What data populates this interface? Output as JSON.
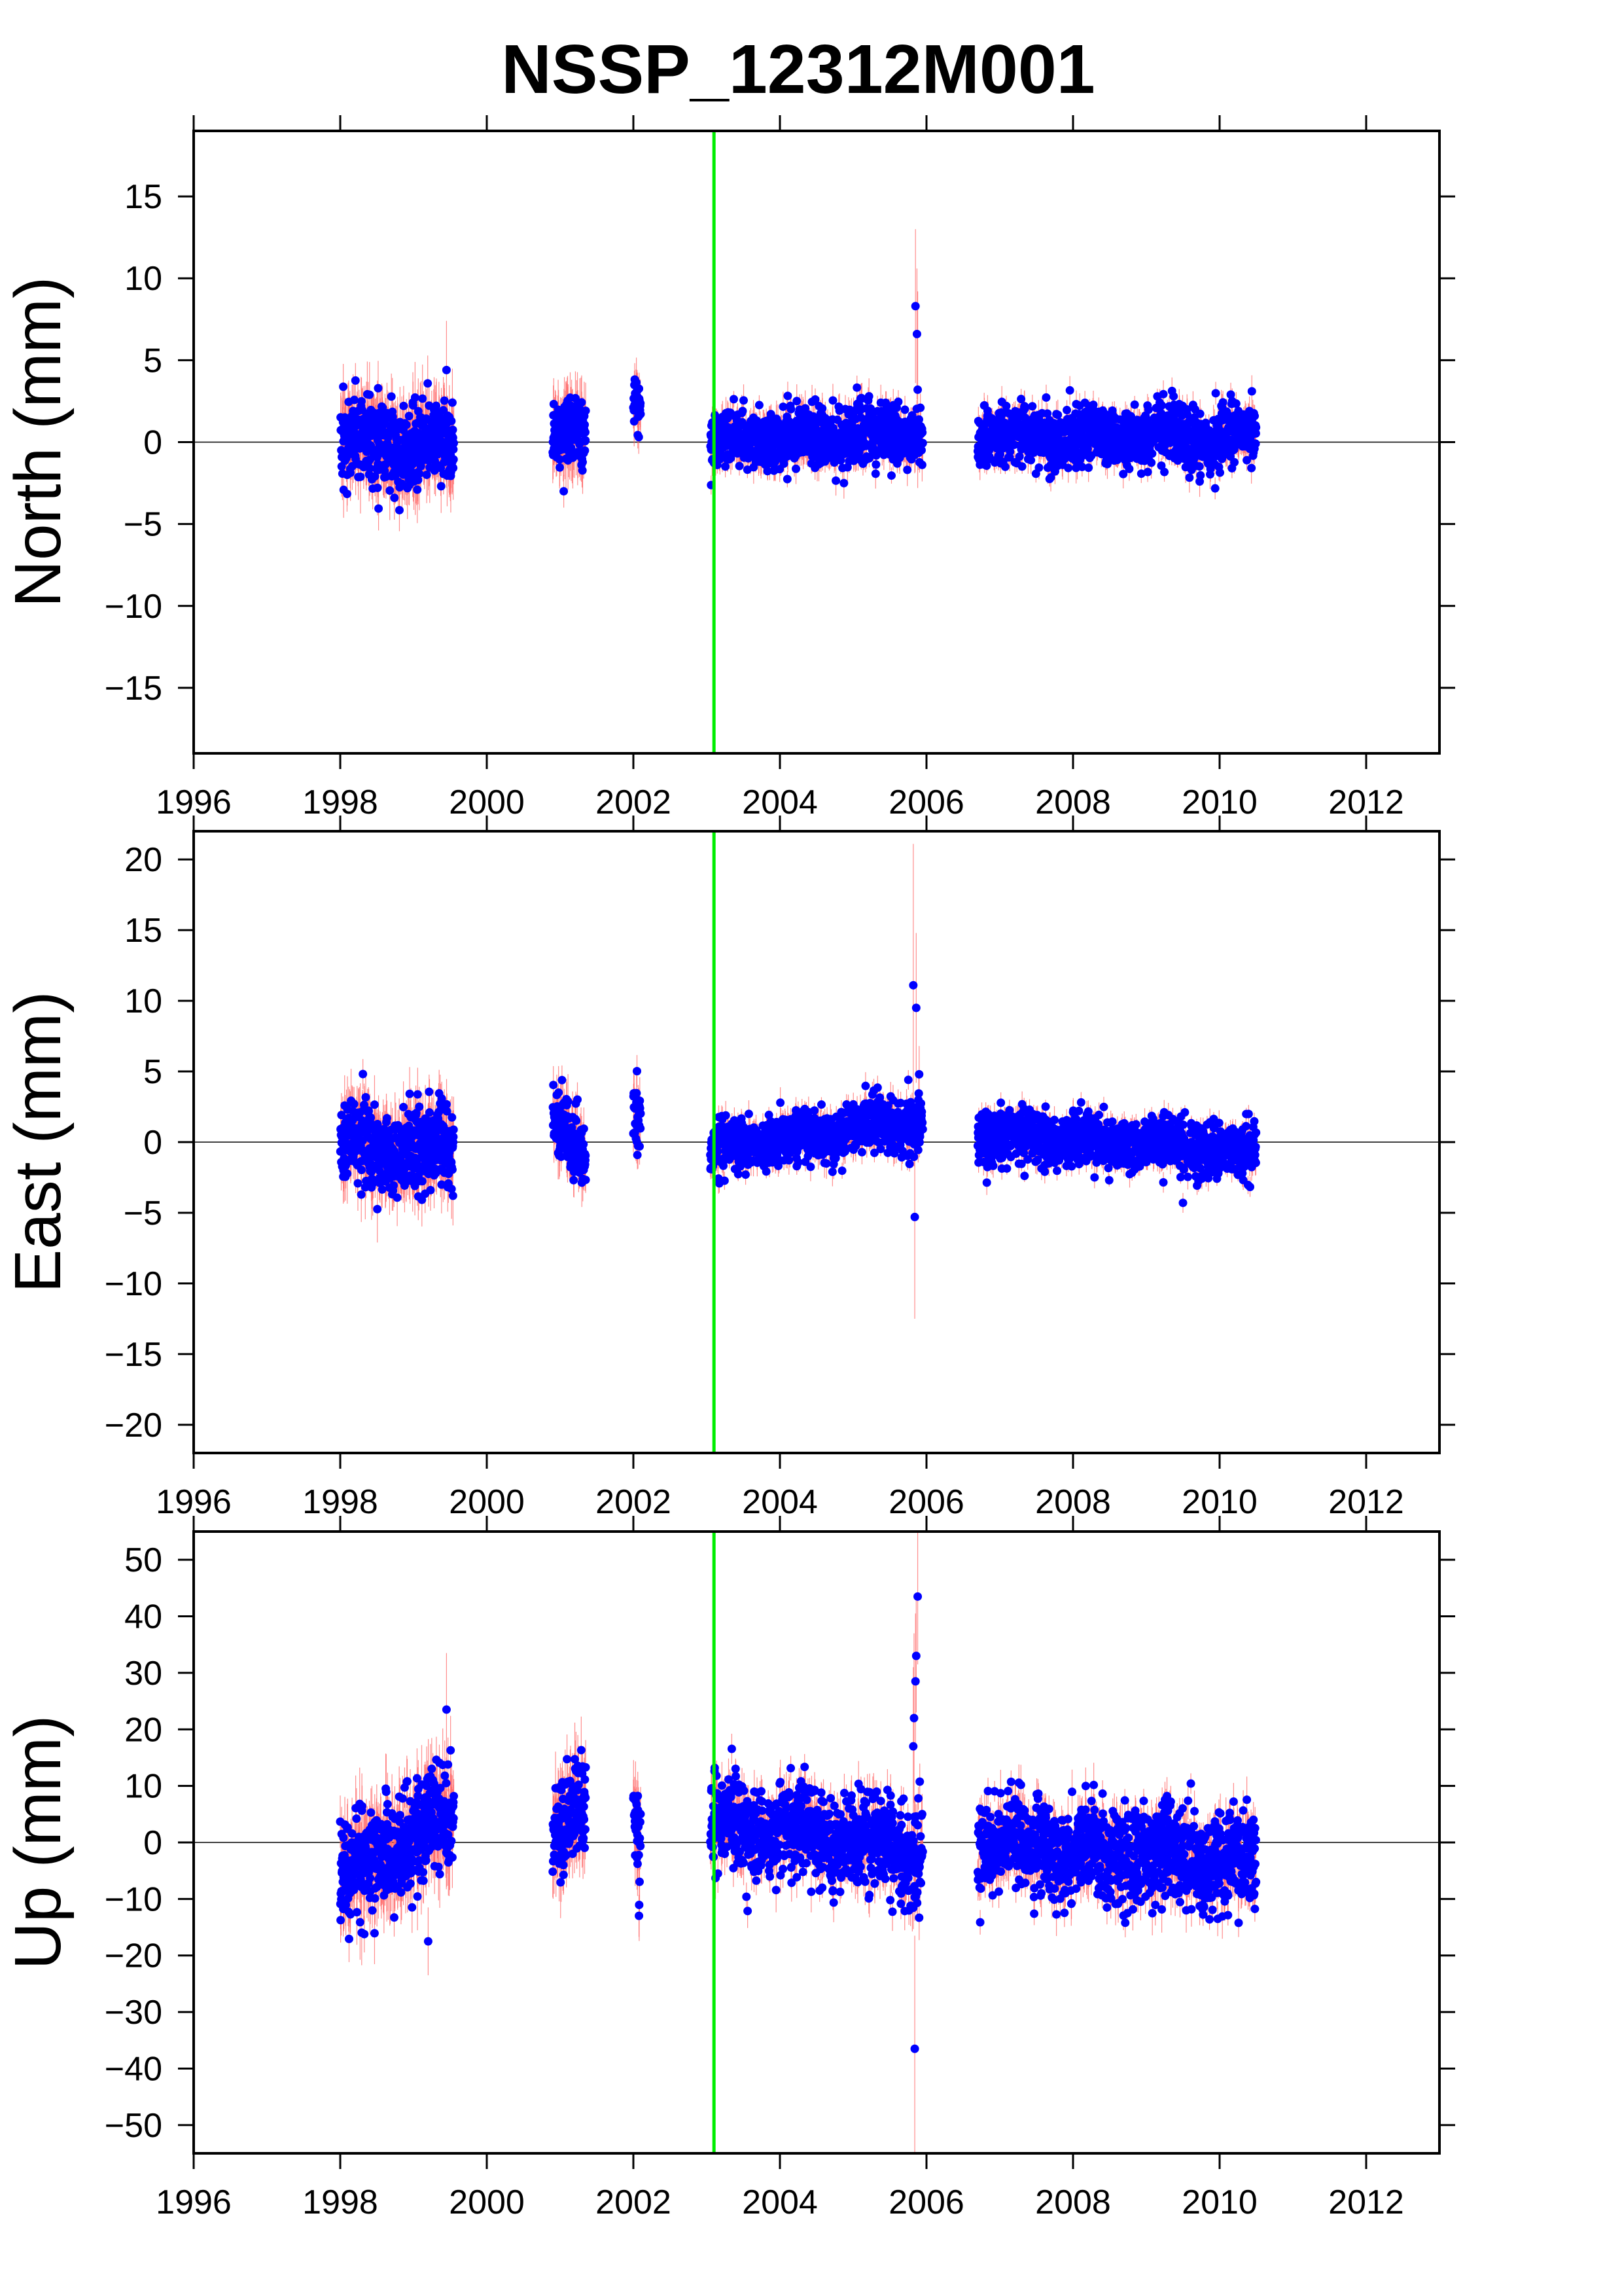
{
  "title": "NSSP_12312M001",
  "colors": {
    "points": "#0000ff",
    "errorbars": "#ff6666",
    "event_line": "#00ee00",
    "zero_line": "#000000",
    "frame": "#000000",
    "background": "#ffffff"
  },
  "chart_data": [
    {
      "type": "scatter",
      "component": "north",
      "ylabel": "North (mm)",
      "xlim": [
        1996,
        2013
      ],
      "ylim": [
        -19,
        19
      ],
      "xticks": [
        1996,
        1998,
        2000,
        2002,
        2004,
        2006,
        2008,
        2010,
        2012
      ],
      "yticks": [
        -15,
        -10,
        -5,
        0,
        5,
        10,
        15
      ],
      "event_line_x": 2003.1,
      "data_segments": [
        {
          "start": 1998.0,
          "end": 1999.55,
          "mean_start": 0.0,
          "mean_end": -0.3,
          "scatter": 1.3,
          "sigma": 1.6
        },
        {
          "start": 2000.9,
          "end": 2001.35,
          "mean_start": 0.8,
          "mean_end": 0.2,
          "scatter": 1.0,
          "sigma": 1.5
        },
        {
          "start": 2002.0,
          "end": 2002.1,
          "mean_start": 2.5,
          "mean_end": 2.2,
          "scatter": 0.8,
          "sigma": 1.2
        },
        {
          "start": 2003.05,
          "end": 2005.95,
          "mean_start": 0.0,
          "mean_end": 0.6,
          "scatter": 0.9,
          "sigma": 0.8
        },
        {
          "start": 2006.7,
          "end": 2010.5,
          "mean_start": 0.5,
          "mean_end": 0.2,
          "scatter": 0.9,
          "sigma": 0.7
        }
      ],
      "outliers": [
        {
          "x": 2005.85,
          "y": 8.3,
          "err": 4.7
        },
        {
          "x": 2005.87,
          "y": 6.6,
          "err": 4.0
        },
        {
          "x": 2005.88,
          "y": 3.2,
          "err": 6.0
        },
        {
          "x": 1999.45,
          "y": 4.4,
          "err": 3.0
        },
        {
          "x": 2001.05,
          "y": -3.0,
          "err": 1.0
        }
      ]
    },
    {
      "type": "scatter",
      "component": "east",
      "ylabel": "East (mm)",
      "xlim": [
        1996,
        2013
      ],
      "ylim": [
        -22,
        22
      ],
      "xticks": [
        1996,
        1998,
        2000,
        2002,
        2004,
        2006,
        2008,
        2010,
        2012
      ],
      "yticks": [
        -20,
        -15,
        -10,
        -5,
        0,
        5,
        10,
        15,
        20
      ],
      "event_line_x": 2003.1,
      "data_segments": [
        {
          "start": 1998.0,
          "end": 1999.55,
          "mean_start": -0.2,
          "mean_end": -0.6,
          "scatter": 1.4,
          "sigma": 1.7
        },
        {
          "start": 2000.9,
          "end": 2001.35,
          "mean_start": 2.0,
          "mean_end": -1.5,
          "scatter": 1.1,
          "sigma": 1.4
        },
        {
          "start": 2002.0,
          "end": 2002.1,
          "mean_start": 2.5,
          "mean_end": 2.0,
          "scatter": 1.2,
          "sigma": 1.3
        },
        {
          "start": 2003.05,
          "end": 2005.95,
          "mean_start": -0.5,
          "mean_end": 1.5,
          "scatter": 0.9,
          "sigma": 0.8
        },
        {
          "start": 2006.7,
          "end": 2010.5,
          "mean_start": 0.5,
          "mean_end": -0.7,
          "scatter": 0.9,
          "sigma": 0.7
        }
      ],
      "outliers": [
        {
          "x": 2005.82,
          "y": 11.1,
          "err": 10.0
        },
        {
          "x": 2005.86,
          "y": 9.5,
          "err": 5.3
        },
        {
          "x": 2005.84,
          "y": -5.3,
          "err": 7.2
        },
        {
          "x": 2005.9,
          "y": 4.8,
          "err": 2.0
        },
        {
          "x": 2009.5,
          "y": -4.3,
          "err": 0.7
        }
      ]
    },
    {
      "type": "scatter",
      "component": "up",
      "ylabel": "Up (mm)",
      "xlim": [
        1996,
        2013
      ],
      "ylim": [
        -55,
        55
      ],
      "xticks": [
        1996,
        1998,
        2000,
        2002,
        2004,
        2006,
        2008,
        2010,
        2012
      ],
      "yticks": [
        -50,
        -40,
        -30,
        -20,
        -10,
        0,
        10,
        20,
        30,
        40,
        50
      ],
      "event_line_x": 2003.1,
      "data_segments": [
        {
          "start": 1998.0,
          "end": 1999.55,
          "mean_start": -6.0,
          "mean_end": 5.0,
          "scatter": 4.5,
          "sigma": 5.0
        },
        {
          "start": 2000.9,
          "end": 2001.35,
          "mean_start": 2.0,
          "mean_end": 5.0,
          "scatter": 4.5,
          "sigma": 5.0
        },
        {
          "start": 2002.0,
          "end": 2002.1,
          "mean_start": 5.0,
          "mean_end": -2.0,
          "scatter": 4.0,
          "sigma": 5.0
        },
        {
          "start": 2003.05,
          "end": 2005.95,
          "mean_start": 4.0,
          "mean_end": -2.0,
          "scatter": 4.0,
          "sigma": 3.0
        },
        {
          "start": 2006.7,
          "end": 2010.5,
          "mean_start": 0.0,
          "mean_end": -4.0,
          "scatter": 4.0,
          "sigma": 3.0
        }
      ],
      "outliers": [
        {
          "x": 1999.45,
          "y": 23.5,
          "err": 10.0
        },
        {
          "x": 1999.2,
          "y": -17.5,
          "err": 6.0
        },
        {
          "x": 2005.88,
          "y": 43.5,
          "err": 12.0
        },
        {
          "x": 2005.86,
          "y": 33.0,
          "err": 10.0
        },
        {
          "x": 2005.85,
          "y": 28.5,
          "err": 12.0
        },
        {
          "x": 2005.83,
          "y": 22.0,
          "err": 15.0
        },
        {
          "x": 2005.82,
          "y": 17.0,
          "err": 14.0
        },
        {
          "x": 2005.84,
          "y": -36.5,
          "err": 20.0
        }
      ]
    }
  ]
}
